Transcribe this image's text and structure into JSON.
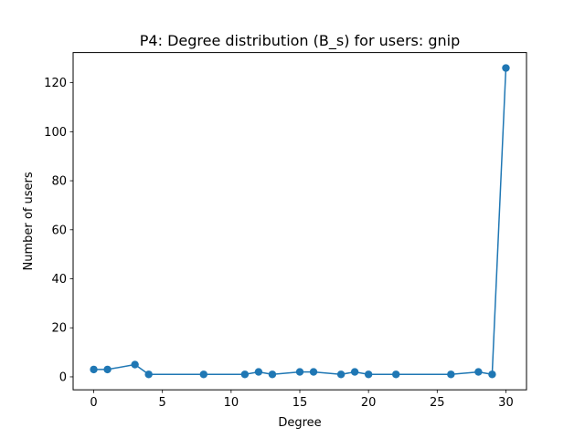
{
  "chart_data": {
    "type": "line",
    "title": "P4: Degree distribution (B_s) for users: gnip",
    "xlabel": "Degree",
    "ylabel": "Number of users",
    "xlim": [
      -1.5,
      31.5
    ],
    "ylim": [
      -5.3,
      132.3
    ],
    "xticks": [
      0,
      5,
      10,
      15,
      20,
      25,
      30
    ],
    "yticks": [
      0,
      20,
      40,
      60,
      80,
      100,
      120
    ],
    "grid": false,
    "legend": "none",
    "color": "#1f77b4",
    "marker": "circle",
    "series": [
      {
        "x": [
          0,
          1,
          3,
          4,
          8,
          11,
          12,
          13,
          15,
          16,
          18,
          19,
          20,
          22,
          26,
          28,
          29,
          30
        ],
        "y": [
          3,
          3,
          5,
          1,
          1,
          1,
          2,
          1,
          2,
          2,
          1,
          2,
          1,
          1,
          1,
          2,
          1,
          126
        ]
      }
    ]
  }
}
